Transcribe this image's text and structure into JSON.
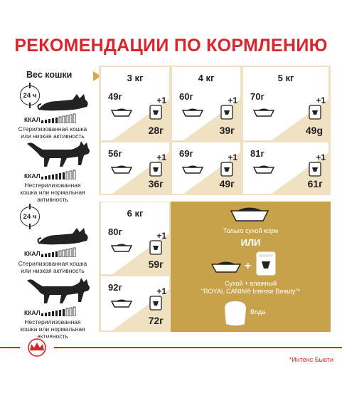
{
  "title": "РЕКОМЕНДАЦИИ ПО КОРМЛЕНИЮ",
  "header_label": "Вес кошки",
  "weights": [
    "3 кг",
    "4 кг",
    "5 кг",
    "6 кг"
  ],
  "clock_label": "24 ч",
  "kcal_label": "ККАЛ",
  "activity": {
    "low": "Стерилизованная кошка или низкая активность",
    "normal": "Нестерилизованная кошка или нормальная активность"
  },
  "plus_one": "+1",
  "rows": [
    {
      "activity": "low",
      "cells": [
        {
          "weight": "3 кг",
          "dry": "49г",
          "wet": "28г"
        },
        {
          "weight": "4 кг",
          "dry": "60г",
          "wet": "39г"
        },
        {
          "weight": "5 кг",
          "dry": "70г",
          "wet": "49g"
        }
      ]
    },
    {
      "activity": "normal",
      "cells": [
        {
          "weight": "3 кг",
          "dry": "56г",
          "wet": "36г"
        },
        {
          "weight": "4 кг",
          "dry": "69г",
          "wet": "49г"
        },
        {
          "weight": "5 кг",
          "dry": "81г",
          "wet": "61г"
        }
      ]
    },
    {
      "activity": "low",
      "cells": [
        {
          "weight": "6 кг",
          "dry": "80г",
          "wet": "59г"
        }
      ]
    },
    {
      "activity": "normal",
      "cells": [
        {
          "weight": "6 кг",
          "dry": "92г",
          "wet": "72г"
        }
      ]
    }
  ],
  "legend": {
    "dry_only": "Только сухой корм",
    "or": "ИЛИ",
    "dry_wet_line1": "Сухой + влажный",
    "dry_wet_line2": "\"ROYAL CANIN® Intense Beauty\"*",
    "water": "Вода"
  },
  "footnote": "*Интенс Бьюти",
  "icons": [
    "clock-24h-icon",
    "cat-lying-icon",
    "cat-standing-icon",
    "bowl-icon",
    "pouch-icon",
    "water-bowl-icon",
    "royal-canin-crown-logo"
  ],
  "colors": {
    "brand_red": "#d8262e",
    "gold": "#c8a24b",
    "beige": "#efe1c2"
  }
}
